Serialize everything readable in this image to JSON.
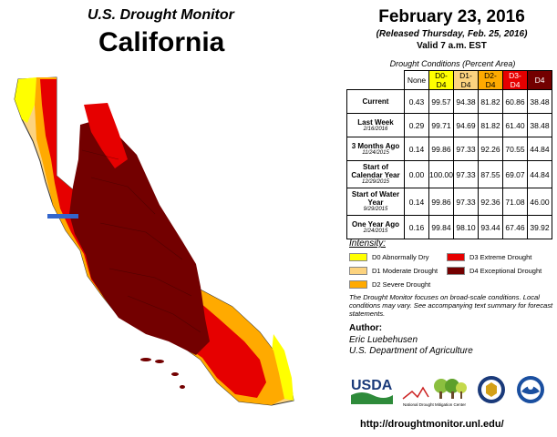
{
  "header": {
    "monitor_title": "U.S. Drought Monitor",
    "state": "California",
    "date": "February 23, 2016",
    "released": "(Released Thursday, Feb. 25, 2016)",
    "valid": "Valid 7 a.m. EST"
  },
  "table": {
    "caption": "Drought Conditions (Percent Area)",
    "columns": [
      "None",
      "D0-D4",
      "D1-D4",
      "D2-D4",
      "D3-D4",
      "D4"
    ],
    "rows": [
      {
        "label": "Current",
        "sub": "",
        "values": [
          "0.43",
          "99.57",
          "94.38",
          "81.82",
          "60.86",
          "38.48"
        ]
      },
      {
        "label": "Last Week",
        "sub": "2/16/2016",
        "values": [
          "0.29",
          "99.71",
          "94.69",
          "81.82",
          "61.40",
          "38.48"
        ]
      },
      {
        "label": "3 Months Ago",
        "sub": "11/24/2015",
        "values": [
          "0.14",
          "99.86",
          "97.33",
          "92.26",
          "70.55",
          "44.84"
        ]
      },
      {
        "label": "Start of Calendar Year",
        "sub": "12/29/2015",
        "values": [
          "0.00",
          "100.00",
          "97.33",
          "87.55",
          "69.07",
          "44.84"
        ]
      },
      {
        "label": "Start of Water Year",
        "sub": "9/29/2015",
        "values": [
          "0.14",
          "99.86",
          "97.33",
          "92.36",
          "71.08",
          "46.00"
        ]
      },
      {
        "label": "One Year Ago",
        "sub": "2/24/2015",
        "values": [
          "0.16",
          "99.84",
          "98.10",
          "93.44",
          "67.46",
          "39.92"
        ]
      }
    ]
  },
  "legend": {
    "title": "Intensity:",
    "items": [
      {
        "label": "D0 Abnormally Dry",
        "color": "#ffff00"
      },
      {
        "label": "D1 Moderate Drought",
        "color": "#fcd37f"
      },
      {
        "label": "D2 Severe Drought",
        "color": "#ffaa00"
      },
      {
        "label": "D3 Extreme Drought",
        "color": "#e60000"
      },
      {
        "label": "D4 Exceptional Drought",
        "color": "#730000"
      }
    ]
  },
  "note": "The Drought Monitor focuses on broad-scale conditions. Local conditions may vary. See accompanying text summary for forecast statements.",
  "author": {
    "title": "Author:",
    "name": "Eric Luebehusen",
    "org": "U.S. Department of Agriculture"
  },
  "logos": {
    "usda": "USDA",
    "ndmc": "National Drought Mitigation Center"
  },
  "url": "http://droughtmonitor.unl.edu/",
  "colors": {
    "d0": "#ffff00",
    "d1": "#fcd37f",
    "d2": "#ffaa00",
    "d3": "#e60000",
    "d4": "#730000"
  }
}
